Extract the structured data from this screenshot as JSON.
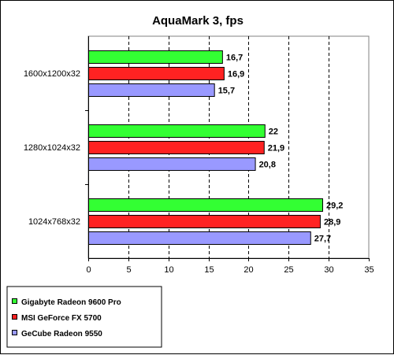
{
  "chart_data": {
    "type": "bar",
    "orientation": "horizontal",
    "title": "AquaMark 3, fps",
    "categories": [
      "1600x1200x32",
      "1280x1024x32",
      "1024x768x32"
    ],
    "series": [
      {
        "name": "Gigabyte Radeon 9600 Pro",
        "color": "#33ff33",
        "values": [
          16.7,
          22,
          29.2
        ],
        "labels": [
          "16,7",
          "22",
          "29,2"
        ]
      },
      {
        "name": "MSI GeForce FX 5700",
        "color": "#ff2222",
        "values": [
          16.9,
          21.9,
          28.9
        ],
        "labels": [
          "16,9",
          "21,9",
          "28,9"
        ]
      },
      {
        "name": "GeCube Radeon 9550",
        "color": "#9999ff",
        "values": [
          15.7,
          20.8,
          27.7
        ],
        "labels": [
          "15,7",
          "20,8",
          "27,7"
        ]
      }
    ],
    "xlim": [
      0,
      35
    ],
    "xticks": [
      0,
      5,
      10,
      15,
      20,
      25,
      30,
      35
    ],
    "xtick_labels": [
      "0",
      "5",
      "10",
      "15",
      "20",
      "25",
      "30",
      "35"
    ],
    "grid": "vertical dashed",
    "legend_position": "bottom-left"
  }
}
